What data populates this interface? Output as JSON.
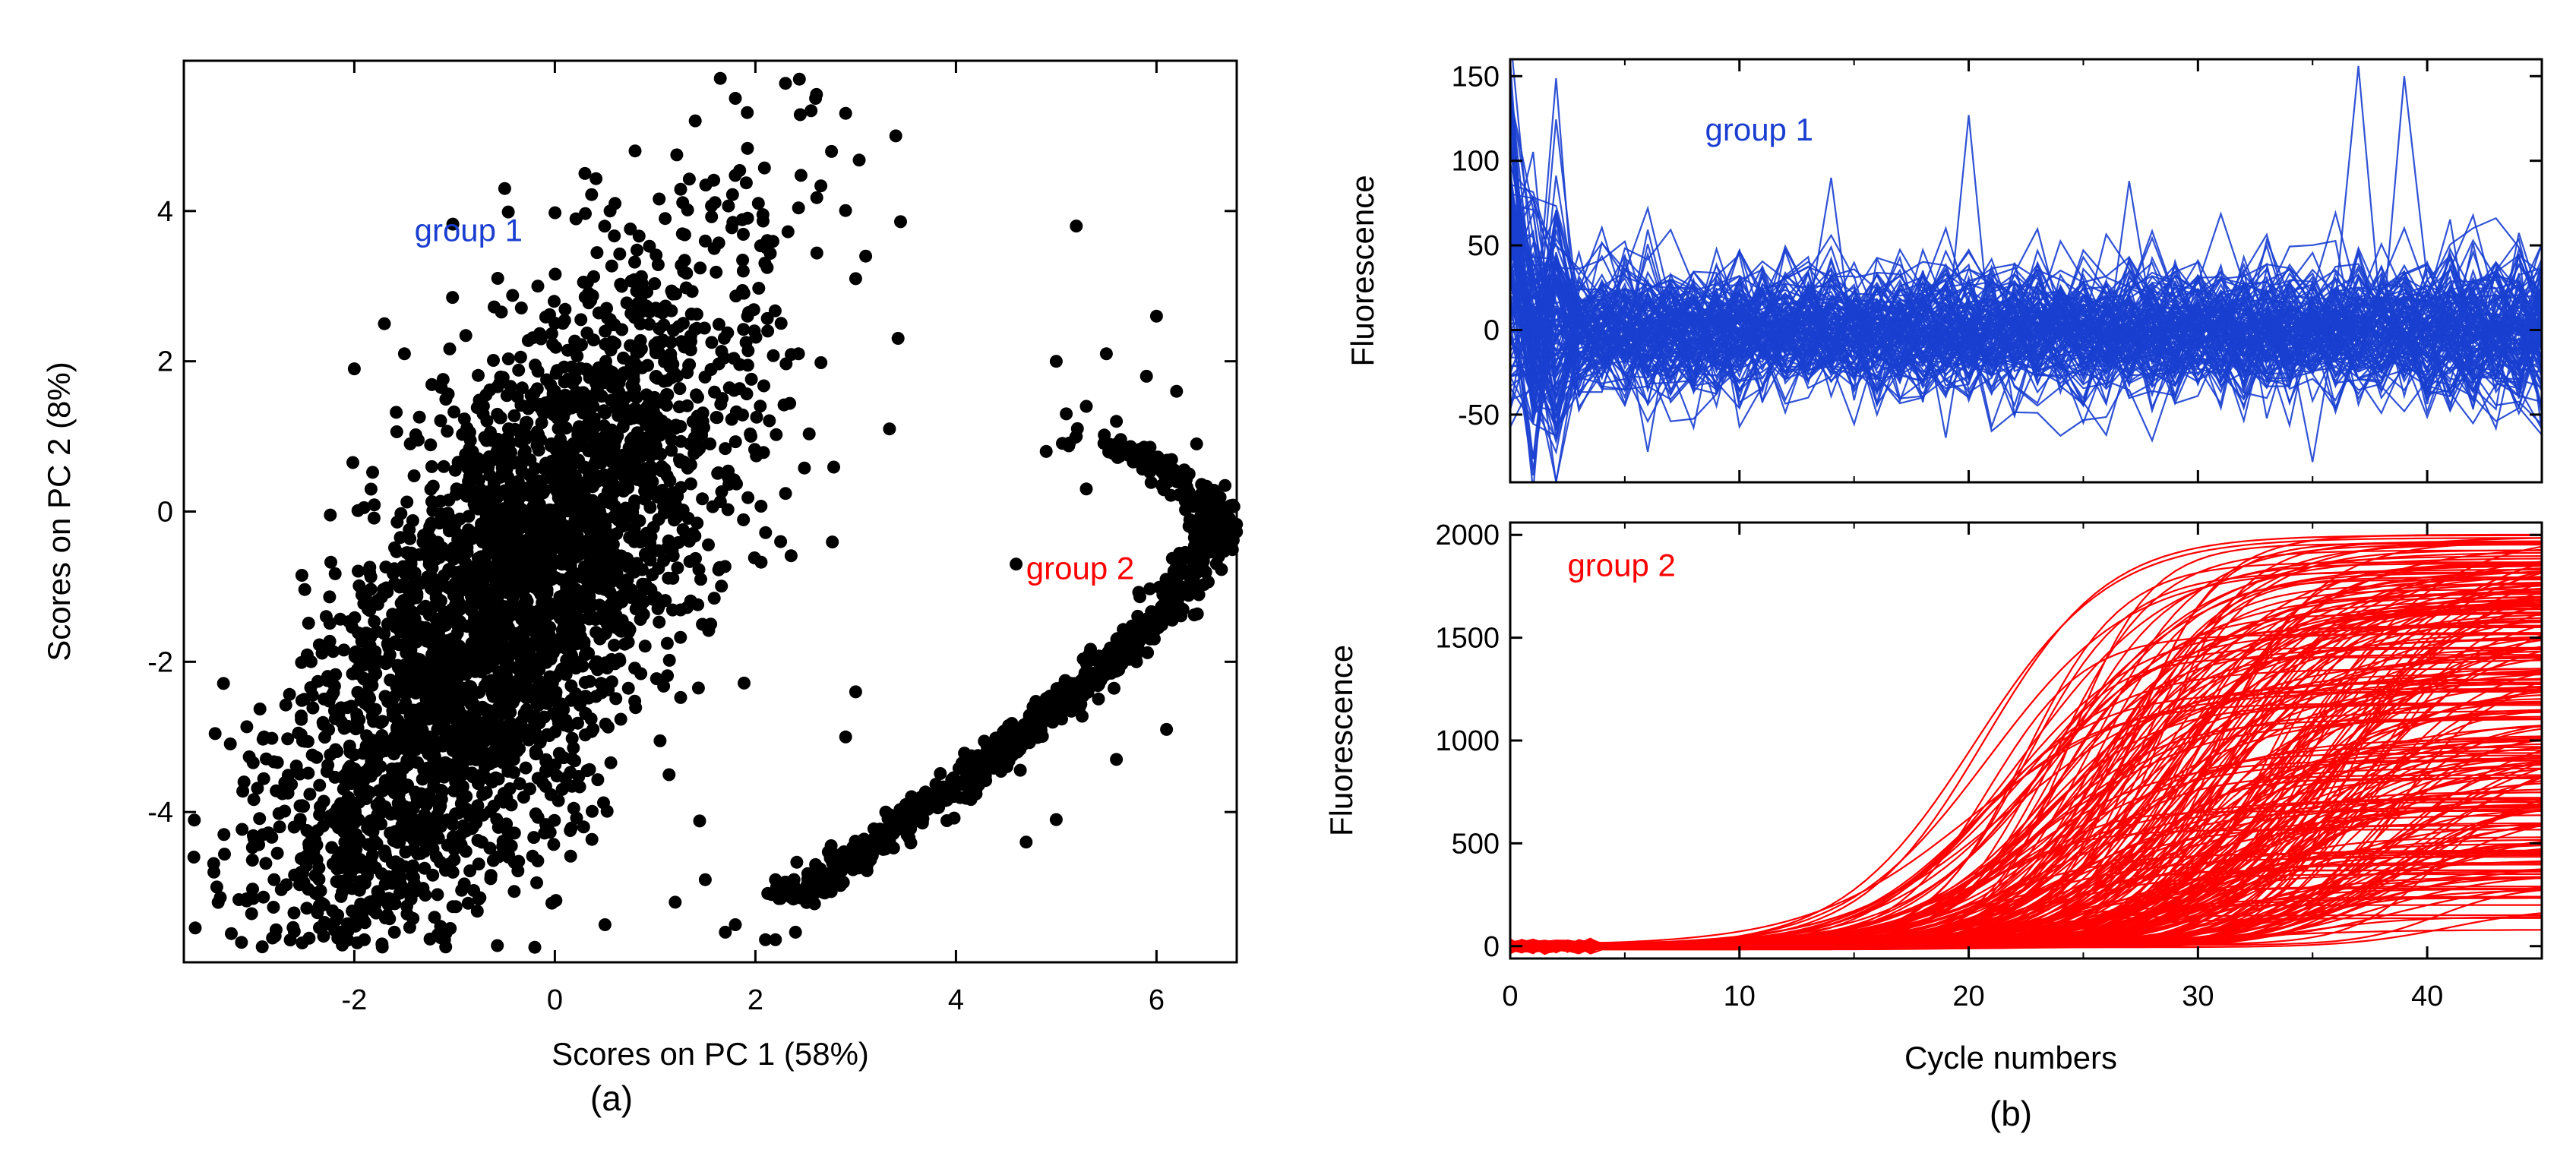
{
  "colors": {
    "group1": "#1a3fd0",
    "group2": "#ff0000",
    "points": "#000000",
    "axis": "#000000"
  },
  "chart_data": [
    {
      "type": "scatter",
      "panel_label": "(a)",
      "xlabel": "Scores on PC 1 (58%)",
      "ylabel": "Scores on PC 2 (8%)",
      "xlim": [
        -3.7,
        6.8
      ],
      "ylim": [
        -6.0,
        6.0
      ],
      "x_ticks": [
        -2,
        0,
        2,
        4,
        6
      ],
      "y_ticks": [
        -4,
        -2,
        0,
        2,
        4
      ],
      "x_tick_labels": [
        "-2",
        "0",
        "2",
        "4",
        "6"
      ],
      "y_tick_labels": [
        "-4",
        "-2",
        "0",
        "2",
        "4"
      ],
      "annotations": [
        {
          "text": "group 1",
          "x": -1.4,
          "y": 3.6,
          "color": "#1a3fd0"
        },
        {
          "text": "group 2",
          "x": 4.7,
          "y": -0.9,
          "color": "#ff0000"
        }
      ],
      "series": [
        {
          "name": "group 1",
          "color": "#000000",
          "cloud": {
            "n": 3400,
            "center_x": -0.5,
            "center_y": -1.4,
            "sd_major": 1.9,
            "sd_minor": 0.75,
            "angle_deg": 58,
            "x_range": [
              -3.6,
              3.8
            ],
            "y_range": [
              -5.8,
              5.8
            ]
          },
          "points_x": [
            -3.6,
            -3.4,
            -3.3,
            -3.1,
            -2.8,
            -2.6,
            -2.9,
            -2.5,
            -1.9,
            -1.6,
            -1.2,
            -1.1,
            -0.2,
            0.5,
            1.2,
            1.7,
            1.5,
            2.2,
            2.6,
            3.0,
            3.3,
            3.5,
            3.4,
            2.9,
            2.6,
            2.3,
            1.8,
            1.4,
            0.8,
            0.3,
            -0.5,
            0.6,
            1.1,
            1.5,
            -1.7,
            -1.5,
            -2.0,
            5.2,
            6.0,
            5.0,
            2.1,
            1.8,
            3.1,
            3.0
          ],
          "points_y": [
            -4.6,
            -4.8,
            -4.3,
            -3.6,
            -4.9,
            -4.2,
            -3.0,
            -2.5,
            -5.7,
            -5.6,
            -5.4,
            -5.7,
            -5.8,
            -5.5,
            -5.2,
            -5.6,
            -4.9,
            -4.9,
            -4.7,
            -4.4,
            -4.0,
            -3.9,
            5.0,
            5.3,
            5.5,
            5.7,
            5.5,
            5.2,
            4.8,
            4.5,
            4.3,
            4.1,
            3.9,
            3.6,
            2.5,
            2.1,
            1.9,
            3.8,
            2.6,
            2.0,
            -5.7,
            -5.5,
            3.4,
            3.1
          ]
        },
        {
          "name": "group 2",
          "color": "#000000",
          "curve": {
            "n": 900,
            "spread": 0.12,
            "y_range": [
              -5.2,
              1.0
            ]
          },
          "points_x": [
            4.6,
            4.9,
            5.1,
            5.3,
            5.6,
            5.9,
            6.2,
            3.0,
            2.9,
            2.4,
            2.2,
            5.3,
            5.2,
            5.5,
            6.4,
            5.8,
            5.6,
            6.1,
            4.7,
            5.0
          ],
          "points_y": [
            -0.7,
            0.8,
            1.3,
            1.4,
            1.2,
            1.8,
            1.6,
            -2.4,
            -3.0,
            -5.6,
            -5.7,
            0.3,
            1.0,
            2.1,
            0.9,
            -2.0,
            -3.3,
            -2.9,
            -4.4,
            -4.1
          ]
        }
      ]
    },
    {
      "type": "line",
      "panel_label": "",
      "xlabel": "",
      "ylabel": "Fluorescence",
      "xlim": [
        0,
        45
      ],
      "ylim": [
        -90,
        160
      ],
      "x_ticks": [
        0,
        10,
        20,
        30,
        40
      ],
      "y_ticks": [
        -50,
        0,
        50,
        100,
        150
      ],
      "y_tick_labels": [
        "-50",
        "0",
        "50",
        "100",
        "150"
      ],
      "annotations": [
        {
          "text": "group 1",
          "x": 8.5,
          "y": 112,
          "color": "#1a3fd0"
        }
      ],
      "series": [
        {
          "name": "group 1",
          "color": "#1a3fd0",
          "n_curves": 130,
          "noise_amplitude": 28,
          "spikes": [
            {
              "cycle": 20,
              "value": 127
            },
            {
              "cycle": 36.5,
              "value": 156
            },
            {
              "cycle": 38.5,
              "value": 150
            },
            {
              "cycle": 27,
              "value": 88
            },
            {
              "cycle": 14,
              "value": 90
            },
            {
              "cycle": 35,
              "value": -78
            },
            {
              "cycle": 45,
              "value": -60
            },
            {
              "cycle": 6,
              "value": -72
            }
          ]
        }
      ]
    },
    {
      "type": "line",
      "panel_label": "(b)",
      "xlabel": "Cycle numbers",
      "ylabel": "Fluorescence",
      "xlim": [
        0,
        45
      ],
      "ylim": [
        -60,
        2060
      ],
      "x_ticks": [
        0,
        10,
        20,
        30,
        40
      ],
      "x_tick_labels": [
        "0",
        "10",
        "20",
        "30",
        "40"
      ],
      "y_ticks": [
        0,
        500,
        1000,
        1500,
        2000
      ],
      "y_tick_labels": [
        "0",
        "500",
        "1000",
        "1500",
        "2000"
      ],
      "annotations": [
        {
          "text": "group 2",
          "x": 2.5,
          "y": 1800,
          "color": "#ff0000"
        }
      ],
      "series": [
        {
          "name": "group 2",
          "color": "#ff0000",
          "n_curves": 260,
          "sigmoid": {
            "plateau_range": [
              50,
              2000
            ],
            "midpoint_range": [
              20,
              42
            ],
            "slope_range": [
              1.7,
              3.6
            ]
          }
        }
      ]
    }
  ]
}
